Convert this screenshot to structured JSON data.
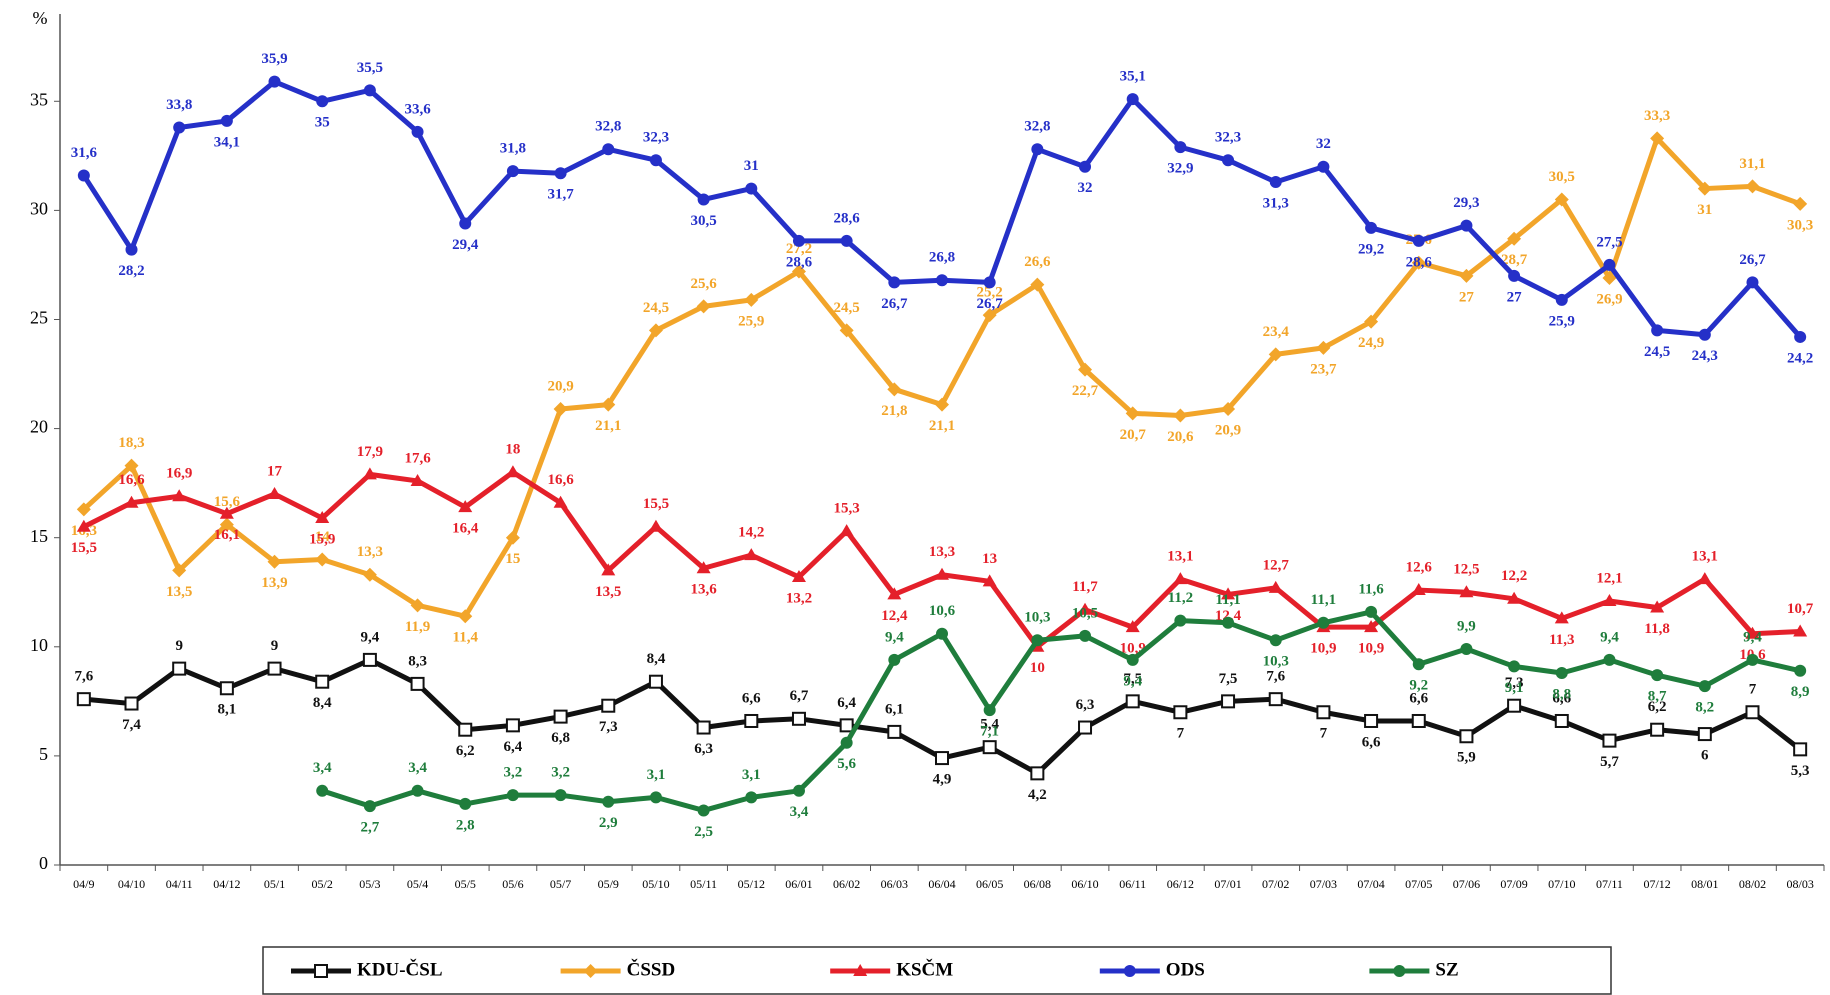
{
  "chart_data": {
    "type": "line",
    "ylabel": "%",
    "categories": [
      "04/9",
      "04/10",
      "04/11",
      "04/12",
      "05/1",
      "05/2",
      "05/3",
      "05/4",
      "05/5",
      "05/6",
      "05/7",
      "05/9",
      "05/10",
      "05/11",
      "05/12",
      "06/01",
      "06/02",
      "06/03",
      "06/04",
      "06/05",
      "06/08",
      "06/10",
      "06/11",
      "06/12",
      "07/01",
      "07/02",
      "07/03",
      "07/04",
      "07/05",
      "07/06",
      "07/09",
      "07/10",
      "07/11",
      "07/12",
      "08/01",
      "08/02",
      "08/03"
    ],
    "ylim": [
      0,
      39
    ],
    "yticks": [
      0,
      5,
      10,
      15,
      20,
      25,
      30,
      35
    ],
    "legend": "bottom",
    "series": [
      {
        "name": "KDU-ČSL",
        "color": "#111111",
        "marker": "square",
        "values": [
          7.6,
          7.4,
          9,
          8.1,
          9,
          8.4,
          9.4,
          8.3,
          6.2,
          6.4,
          6.8,
          7.3,
          8.4,
          6.3,
          6.6,
          6.7,
          6.4,
          6.1,
          4.9,
          5.4,
          4.2,
          6.3,
          7.5,
          7,
          7.5,
          7.6,
          7,
          6.6,
          6.6,
          5.9,
          7.3,
          6.6,
          5.7,
          6.2,
          6,
          7,
          5.3
        ],
        "value_labels": [
          "7,6",
          "7,4",
          "9",
          "8,1",
          "9",
          "8,4",
          "9,4",
          "8,3",
          "6,2",
          "6,4",
          "6,8",
          "7,3",
          "8,4",
          "6,3",
          "6,6",
          "6,7",
          "6,4",
          "6,1",
          "4,9",
          "5,4",
          "4,2",
          "6,3",
          "7,5",
          "7",
          "7,5",
          "7,6",
          "7",
          "6,6",
          "6,6",
          "5,9",
          "7,3",
          "6,6",
          "5,7",
          "6,2",
          "6",
          "7",
          "5,3"
        ]
      },
      {
        "name": "ČSSD",
        "color": "#f2a52a",
        "marker": "diamond",
        "values": [
          16.3,
          18.3,
          13.5,
          15.6,
          13.9,
          14,
          13.3,
          11.9,
          11.4,
          15,
          20.9,
          21.1,
          24.5,
          25.6,
          25.9,
          27.2,
          24.5,
          21.8,
          21.1,
          25.2,
          26.6,
          22.7,
          20.7,
          20.6,
          20.9,
          23.4,
          23.7,
          24.9,
          27.6,
          27,
          28.7,
          30.5,
          26.9,
          33.3,
          31,
          31.1,
          30.3
        ],
        "value_labels": [
          "16,3",
          "18,3",
          "13,5",
          "15,6",
          "13,9",
          "14",
          "13,3",
          "11,9",
          "11,4",
          "15",
          "20,9",
          "21,1",
          "24,5",
          "25,6",
          "25,9",
          "27,2",
          "24,5",
          "21,8",
          "21,1",
          "25,2",
          "26,6",
          "22,7",
          "20,7",
          "20,6",
          "20,9",
          "23,4",
          "23,7",
          "24,9",
          "27,6",
          "27",
          "28,7",
          "30,5",
          "26,9",
          "33,3",
          "31",
          "31,1",
          "30,3"
        ]
      },
      {
        "name": "KSČM",
        "color": "#e4202a",
        "marker": "triangle",
        "values": [
          15.5,
          16.6,
          16.9,
          16.1,
          17,
          15.9,
          17.9,
          17.6,
          16.4,
          18,
          16.6,
          13.5,
          15.5,
          13.6,
          14.2,
          13.2,
          15.3,
          12.4,
          13.3,
          13,
          10,
          11.7,
          10.9,
          13.1,
          12.4,
          12.7,
          10.9,
          10.9,
          12.6,
          12.5,
          12.2,
          11.3,
          12.1,
          11.8,
          13.1,
          10.6,
          10.7
        ],
        "value_labels": [
          "15,5",
          "16,6",
          "16,9",
          "16,1",
          "17",
          "15,9",
          "17,9",
          "17,6",
          "16,4",
          "18",
          "16,6",
          "13,5",
          "15,5",
          "13,6",
          "14,2",
          "13,2",
          "15,3",
          "12,4",
          "13,3",
          "13",
          "10",
          "11,7",
          "10,9",
          "13,1",
          "12,4",
          "12,7",
          "10,9",
          "10,9",
          "12,6",
          "12,5",
          "12,2",
          "11,3",
          "12,1",
          "11,8",
          "13,1",
          "10,6",
          "10,7"
        ]
      },
      {
        "name": "ODS",
        "color": "#2530c8",
        "marker": "circle",
        "values": [
          31.6,
          28.2,
          33.8,
          34.1,
          35.9,
          35,
          35.5,
          33.6,
          29.4,
          31.8,
          31.7,
          32.8,
          32.3,
          30.5,
          31,
          28.6,
          28.6,
          26.7,
          26.8,
          26.7,
          32.8,
          32,
          35.1,
          32.9,
          32.3,
          31.3,
          32,
          29.2,
          28.6,
          29.3,
          27,
          25.9,
          27.5,
          24.5,
          24.3,
          26.7,
          24.2
        ],
        "value_labels": [
          "31,6",
          "28,2",
          "33,8",
          "34,1",
          "35,9",
          "35",
          "35,5",
          "33,6",
          "29,4",
          "31,8",
          "31,7",
          "32,8",
          "32,3",
          "30,5",
          "31",
          "28,6",
          "28,6",
          "26,7",
          "26,8",
          "26,7",
          "32,8",
          "32",
          "35,1",
          "32,9",
          "32,3",
          "31,3",
          "32",
          "29,2",
          "28,6",
          "29,3",
          "27",
          "25,9",
          "27,5",
          "24,5",
          "24,3",
          "26,7",
          "24,2"
        ]
      },
      {
        "name": "SZ",
        "color": "#1f7d3c",
        "marker": "circle",
        "values": [
          null,
          null,
          null,
          null,
          null,
          3.4,
          2.7,
          3.4,
          2.8,
          3.2,
          3.2,
          2.9,
          3.1,
          2.5,
          3.1,
          3.4,
          5.6,
          9.4,
          10.6,
          7.1,
          10.3,
          10.5,
          9.4,
          11.2,
          11.1,
          10.3,
          11.1,
          11.6,
          9.2,
          9.9,
          9.1,
          8.8,
          9.4,
          8.7,
          8.2,
          9.4,
          8.9
        ],
        "value_labels": [
          null,
          null,
          null,
          null,
          null,
          "3,4",
          "2,7",
          "3,4",
          "2,8",
          "3,2",
          "3,2",
          "2,9",
          "3,1",
          "2,5",
          "3,1",
          "3,4",
          "5,6",
          "9,4",
          "10,6",
          "7,1",
          "10,3",
          "10,5",
          "9,4",
          "11,2",
          "11,1",
          "10,3",
          "11,1",
          "11,6",
          "9,2",
          "9,9",
          "9,1",
          "8,8",
          "9,4",
          "8,7",
          "8,2",
          "9,4",
          "8,9"
        ]
      }
    ]
  }
}
